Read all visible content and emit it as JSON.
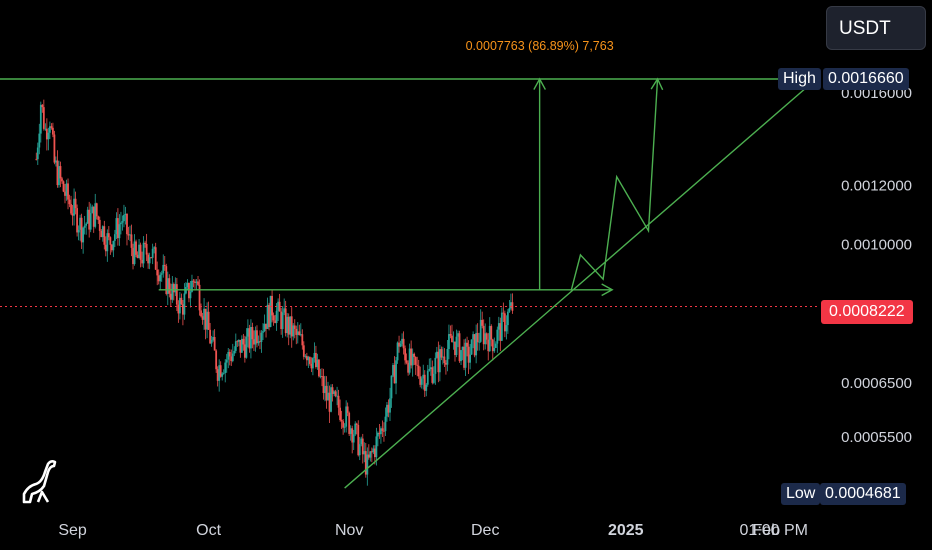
{
  "currency_button": {
    "label": "USDT"
  },
  "measure_label": "0.0007763 (86.89%) 7,763",
  "badges": {
    "high_label": "High",
    "high_value": "0.0016660",
    "low_label": "Low",
    "low_value": "0.0004681",
    "current_value": "0.0008222"
  },
  "colors": {
    "background": "#000000",
    "up_candle": "#26a69a",
    "down_candle": "#ef5350",
    "drawing": "#4caf50",
    "measure_text": "#f7931a",
    "current_price": "#f23645",
    "badge_bg": "#1c2a4a"
  },
  "chart_data": {
    "type": "candlestick",
    "title": "",
    "xlabel": "",
    "ylabel": "",
    "y_scale": "log",
    "ylim": [
      0.00044,
      0.00185
    ],
    "y_ticks": [
      "0.0016000",
      "0.0012000",
      "0.0010000",
      "0.0008000",
      "0.0006500",
      "0.0005500"
    ],
    "x_ticks": [
      "Sep",
      "Oct",
      "Nov",
      "Dec",
      "2025",
      "Feb",
      "01:00 PM"
    ],
    "price_path": [
      [
        "2024-08-24",
        0.0013
      ],
      [
        "2024-08-25",
        0.00155
      ],
      [
        "2024-08-26",
        0.00142
      ],
      [
        "2024-08-27",
        0.00148
      ],
      [
        "2024-08-28",
        0.00128
      ],
      [
        "2024-08-30",
        0.00118
      ],
      [
        "2024-09-03",
        0.00105
      ],
      [
        "2024-09-06",
        0.0011
      ],
      [
        "2024-09-09",
        0.001
      ],
      [
        "2024-09-12",
        0.00108
      ],
      [
        "2024-09-15",
        0.00095
      ],
      [
        "2024-09-18",
        0.00098
      ],
      [
        "2024-09-22",
        0.00088
      ],
      [
        "2024-09-25",
        0.00082
      ],
      [
        "2024-09-28",
        0.0009
      ],
      [
        "2024-10-01",
        0.00076
      ],
      [
        "2024-10-03",
        0.00068
      ],
      [
        "2024-10-07",
        0.00072
      ],
      [
        "2024-10-10",
        0.00074
      ],
      [
        "2024-10-13",
        0.00078
      ],
      [
        "2024-10-15",
        0.00082
      ],
      [
        "2024-10-18",
        0.00078
      ],
      [
        "2024-10-21",
        0.00074
      ],
      [
        "2024-10-24",
        0.0007
      ],
      [
        "2024-10-27",
        0.00062
      ],
      [
        "2024-10-30",
        0.0006
      ],
      [
        "2024-11-02",
        0.00056
      ],
      [
        "2024-11-05",
        0.0005
      ],
      [
        "2024-11-08",
        0.00056
      ],
      [
        "2024-11-10",
        0.00062
      ],
      [
        "2024-11-12",
        0.00074
      ],
      [
        "2024-11-15",
        0.00068
      ],
      [
        "2024-11-18",
        0.00066
      ],
      [
        "2024-11-21",
        0.0007
      ],
      [
        "2024-11-24",
        0.00074
      ],
      [
        "2024-11-27",
        0.0007
      ],
      [
        "2024-11-30",
        0.00076
      ],
      [
        "2024-12-03",
        0.00074
      ],
      [
        "2024-12-05",
        0.00078
      ],
      [
        "2024-12-07",
        0.00082
      ]
    ],
    "dates": {
      "first_bar": "2024-08-24",
      "last_bar": "2024-12-07",
      "axis_end": "2025-02-18"
    },
    "levels": {
      "high": 0.001666,
      "low": 0.0004681,
      "current": 0.0008222
    },
    "drawings": {
      "top_line": [
        [
          "2024-08-16",
          0.001666
        ],
        [
          "2025-02-12",
          0.001666
        ]
      ],
      "mid_line": [
        [
          "2024-09-20",
          0.000866
        ],
        [
          "2024-12-29",
          0.000866
        ]
      ],
      "trendline": [
        [
          "2024-10-31",
          0.000468
        ],
        [
          "2025-02-12",
          0.001666
        ]
      ],
      "measure_arrow": [
        [
          "2024-12-13",
          0.000866
        ],
        [
          "2024-12-13",
          0.001666
        ]
      ],
      "projection": [
        [
          "2024-12-20",
          0.000866
        ],
        [
          "2024-12-22",
          0.000965
        ],
        [
          "2024-12-27",
          0.000895
        ],
        [
          "2024-12-30",
          0.00123
        ],
        [
          "2025-01-06",
          0.00104
        ],
        [
          "2025-01-08",
          0.001666
        ]
      ]
    }
  }
}
